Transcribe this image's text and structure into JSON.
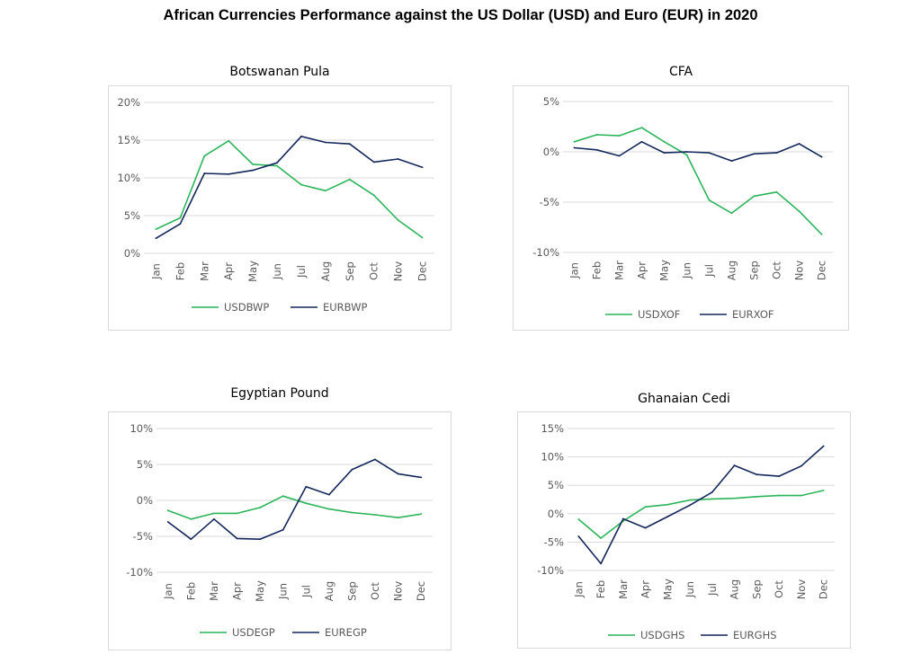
{
  "title": "African Currencies Performance against the US Dollar (USD) and Euro (EUR) in 2020",
  "colors": {
    "usd": "#2bb45a",
    "eur": "#13275a",
    "grid": "#d9d9d9",
    "axis": "#bfbfbf",
    "tick": "#595959"
  },
  "chart_data": [
    {
      "type": "line",
      "title": "Botswanan Pula",
      "categories": [
        "Jan",
        "Feb",
        "Mar",
        "Apr",
        "May",
        "Jun",
        "Jul",
        "Aug",
        "Sep",
        "Oct",
        "Nov",
        "Dec"
      ],
      "ylim": [
        0,
        20
      ],
      "yticks": [
        0,
        5,
        10,
        15,
        20
      ],
      "ytick_labels": [
        "0%",
        "5%",
        "10%",
        "15%",
        "20%"
      ],
      "legend_position": "bottom",
      "series": [
        {
          "name": "USDBWP",
          "color_key": "usd",
          "values": [
            3.2,
            4.7,
            12.9,
            14.9,
            11.8,
            11.6,
            9.1,
            8.3,
            9.8,
            7.7,
            4.4,
            2.1
          ]
        },
        {
          "name": "EURBWP",
          "color_key": "eur",
          "values": [
            2.0,
            3.9,
            10.6,
            10.5,
            11.0,
            12.0,
            15.5,
            14.7,
            14.5,
            12.1,
            12.5,
            11.4
          ]
        }
      ]
    },
    {
      "type": "line",
      "title": "CFA",
      "categories": [
        "Jan",
        "Feb",
        "Mar",
        "Apr",
        "May",
        "Jun",
        "Jul",
        "Aug",
        "Sep",
        "Oct",
        "Nov",
        "Dec"
      ],
      "ylim": [
        -10,
        5
      ],
      "yticks": [
        -10,
        -5,
        0,
        5
      ],
      "ytick_labels": [
        "-10%",
        "-5%",
        "0%",
        "5%"
      ],
      "legend_position": "bottom",
      "series": [
        {
          "name": "USDXOF",
          "color_key": "usd",
          "values": [
            1.0,
            1.7,
            1.6,
            2.4,
            1.0,
            -0.3,
            -4.8,
            -6.1,
            -4.4,
            -4.0,
            -5.9,
            -8.2
          ]
        },
        {
          "name": "EURXOF",
          "color_key": "eur",
          "values": [
            0.4,
            0.2,
            -0.4,
            1.0,
            -0.1,
            0.0,
            -0.1,
            -0.9,
            -0.2,
            -0.1,
            0.8,
            -0.5
          ]
        }
      ]
    },
    {
      "type": "line",
      "title": "Egyptian Pound",
      "categories": [
        "Jan",
        "Feb",
        "Mar",
        "Apr",
        "May",
        "Jun",
        "Jul",
        "Aug",
        "Sep",
        "Oct",
        "Nov",
        "Dec"
      ],
      "ylim": [
        -10,
        10
      ],
      "yticks": [
        -10,
        -5,
        0,
        5,
        10
      ],
      "ytick_labels": [
        "-10%",
        "-5%",
        "0%",
        "5%",
        "10%"
      ],
      "legend_position": "bottom",
      "series": [
        {
          "name": "USDEGP",
          "color_key": "usd",
          "values": [
            -1.4,
            -2.6,
            -1.8,
            -1.8,
            -1.0,
            0.6,
            -0.4,
            -1.2,
            -1.7,
            -2.0,
            -2.4,
            -1.9
          ]
        },
        {
          "name": "EUREGP",
          "color_key": "eur",
          "values": [
            -3.0,
            -5.4,
            -2.6,
            -5.3,
            -5.4,
            -4.1,
            1.9,
            0.8,
            4.3,
            5.7,
            3.7,
            3.2
          ]
        }
      ]
    },
    {
      "type": "line",
      "title": "Ghanaian Cedi",
      "categories": [
        "Jan",
        "Feb",
        "Mar",
        "Apr",
        "May",
        "Jun",
        "Jul",
        "Aug",
        "Sep",
        "Oct",
        "Nov",
        "Dec"
      ],
      "ylim": [
        -10,
        15
      ],
      "yticks": [
        -10,
        -5,
        0,
        5,
        10,
        15
      ],
      "ytick_labels": [
        "-10%",
        "-5%",
        "0%",
        "5%",
        "10%",
        "15%"
      ],
      "legend_position": "bottom",
      "series": [
        {
          "name": "USDGHS",
          "color_key": "usd",
          "values": [
            -1.0,
            -4.3,
            -1.3,
            1.2,
            1.6,
            2.4,
            2.6,
            2.7,
            3.0,
            3.2,
            3.2,
            4.1
          ]
        },
        {
          "name": "EURGHS",
          "color_key": "eur",
          "values": [
            -4.0,
            -8.8,
            -0.9,
            -2.5,
            -0.5,
            1.5,
            3.8,
            8.5,
            6.9,
            6.6,
            8.4,
            11.9
          ]
        }
      ]
    }
  ]
}
